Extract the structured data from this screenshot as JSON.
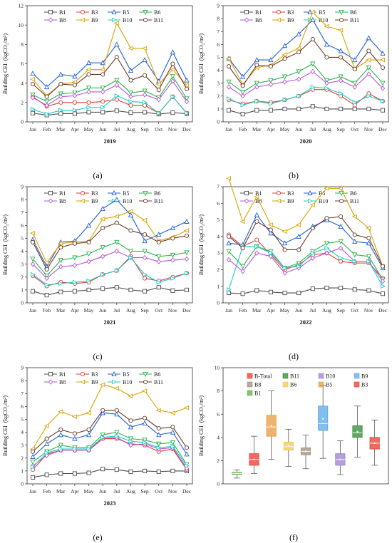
{
  "line_series_names": [
    "B1",
    "B3",
    "B5",
    "B6",
    "B8",
    "B9",
    "B10",
    "B11"
  ],
  "colors": {
    "B1": "#4d4d4d",
    "B3": "#e8392c",
    "B5": "#1f5fd6",
    "B6": "#2bb34a",
    "B8": "#b455d6",
    "B9": "#d9a300",
    "B10": "#1fc8c8",
    "B11": "#6b3a2a"
  },
  "chart_data": [
    {
      "type": "line",
      "label": "(a)",
      "year": "2019",
      "ylabel": "Building CEI  (kgCO₂/m²)",
      "ylim": [
        0,
        12
      ],
      "yticks": [
        0,
        2,
        4,
        6,
        8,
        10,
        12
      ],
      "categories": [
        "Jan",
        "Feb",
        "Mar",
        "Apr",
        "May",
        "Jun",
        "Jul",
        "Aug",
        "Sep",
        "Oct",
        "Nov",
        "Dec"
      ],
      "series": [
        {
          "name": "B1",
          "values": [
            0.9,
            0.7,
            0.85,
            0.85,
            1.0,
            1.0,
            1.15,
            0.95,
            1.0,
            0.8,
            0.95,
            0.85
          ]
        },
        {
          "name": "B3",
          "values": [
            2.6,
            1.6,
            2.0,
            2.0,
            2.0,
            2.1,
            2.3,
            1.7,
            1.7,
            0.9,
            2.6,
            0.9
          ]
        },
        {
          "name": "B5",
          "values": [
            5.0,
            3.6,
            4.9,
            4.7,
            6.1,
            6.1,
            8.0,
            5.3,
            6.4,
            4.2,
            7.2,
            4.3
          ]
        },
        {
          "name": "B6",
          "values": [
            2.8,
            2.1,
            2.9,
            3.0,
            3.5,
            3.5,
            4.3,
            3.0,
            3.2,
            2.5,
            4.7,
            2.4
          ]
        },
        {
          "name": "B8",
          "values": [
            2.5,
            1.7,
            2.6,
            2.7,
            3.1,
            3.1,
            3.8,
            2.6,
            2.8,
            2.3,
            4.2,
            2.1
          ]
        },
        {
          "name": "B9",
          "values": [
            4.4,
            2.7,
            3.9,
            4.1,
            5.4,
            5.4,
            10.2,
            7.6,
            7.6,
            3.9,
            5.4,
            3.8
          ]
        },
        {
          "name": "B10",
          "values": [
            1.3,
            0.8,
            1.2,
            1.2,
            1.5,
            1.5,
            2.7,
            2.1,
            2.0,
            0.9,
            2.6,
            0.9
          ]
        },
        {
          "name": "B11",
          "values": [
            3.9,
            2.6,
            3.9,
            3.8,
            4.9,
            4.9,
            6.7,
            4.3,
            4.8,
            3.3,
            6.0,
            3.4
          ]
        }
      ]
    },
    {
      "type": "line",
      "label": "(b)",
      "year": "2020",
      "ylabel": "Building CEI  (kgCO₂/m²)",
      "ylim": [
        0,
        9
      ],
      "yticks": [
        0,
        1,
        2,
        3,
        4,
        5,
        6,
        7,
        8,
        9
      ],
      "categories": [
        "Jan",
        "Feb",
        "Mar",
        "Apr",
        "May",
        "Jun",
        "Jul",
        "Aug",
        "Sep",
        "Oct",
        "Nov",
        "Dec"
      ],
      "series": [
        {
          "name": "B1",
          "values": [
            0.9,
            0.6,
            0.9,
            0.9,
            1.0,
            1.0,
            1.2,
            1.0,
            1.0,
            1.0,
            1.0,
            0.9
          ]
        },
        {
          "name": "B3",
          "values": [
            1.7,
            1.4,
            1.6,
            1.5,
            1.7,
            2.0,
            2.5,
            2.5,
            2.0,
            1.3,
            2.2,
            1.6
          ]
        },
        {
          "name": "B5",
          "values": [
            4.9,
            3.5,
            4.8,
            4.8,
            5.9,
            6.8,
            7.9,
            6.0,
            5.5,
            4.8,
            6.5,
            5.3
          ]
        },
        {
          "name": "B6",
          "values": [
            3.1,
            2.3,
            3.0,
            3.2,
            3.5,
            3.9,
            4.5,
            3.2,
            3.5,
            3.0,
            4.2,
            3.0
          ]
        },
        {
          "name": "B8",
          "values": [
            2.7,
            2.0,
            2.7,
            2.9,
            3.1,
            3.3,
            3.9,
            3.0,
            3.2,
            2.7,
            3.7,
            2.6
          ]
        },
        {
          "name": "B9",
          "values": [
            4.9,
            2.9,
            4.2,
            4.4,
            5.2,
            5.7,
            8.5,
            7.4,
            7.1,
            4.1,
            4.8,
            4.8
          ]
        },
        {
          "name": "B10",
          "values": [
            1.8,
            1.3,
            1.6,
            1.4,
            1.7,
            2.0,
            2.7,
            2.6,
            2.2,
            1.5,
            2.0,
            1.6
          ]
        },
        {
          "name": "B11",
          "values": [
            4.3,
            2.8,
            4.4,
            4.3,
            4.9,
            5.4,
            6.4,
            5.0,
            5.0,
            4.1,
            5.5,
            4.2
          ]
        }
      ]
    },
    {
      "type": "line",
      "label": "(c)",
      "year": "2021",
      "ylabel": "Building CEI  (kgCO₂/m²)",
      "ylim": [
        0,
        9
      ],
      "yticks": [
        0,
        1,
        2,
        3,
        4,
        5,
        6,
        7,
        8,
        9
      ],
      "categories": [
        "Jan",
        "Feb",
        "Mar",
        "Apr",
        "May",
        "Jun",
        "Jul",
        "Aug",
        "Sep",
        "Oct",
        "Nov",
        "Dec"
      ],
      "series": [
        {
          "name": "B1",
          "values": [
            0.9,
            0.6,
            0.85,
            0.9,
            1.0,
            1.1,
            1.2,
            1.0,
            0.9,
            1.2,
            0.95,
            1.0
          ]
        },
        {
          "name": "B3",
          "values": [
            2.1,
            1.3,
            1.6,
            1.5,
            1.6,
            2.2,
            2.5,
            3.6,
            1.9,
            1.7,
            2.0,
            2.3
          ]
        },
        {
          "name": "B5",
          "values": [
            4.9,
            2.8,
            4.7,
            4.8,
            6.0,
            7.3,
            8.0,
            6.8,
            4.8,
            5.3,
            5.8,
            6.3
          ]
        },
        {
          "name": "B6",
          "values": [
            3.4,
            2.1,
            3.3,
            3.5,
            3.8,
            4.3,
            4.7,
            4.0,
            4.0,
            3.6,
            3.7,
            3.9
          ]
        },
        {
          "name": "B8",
          "values": [
            3.0,
            1.9,
            2.8,
            2.9,
            3.2,
            3.6,
            4.0,
            3.5,
            3.5,
            3.2,
            3.3,
            3.4
          ]
        },
        {
          "name": "B9",
          "values": [
            5.4,
            3.1,
            4.6,
            4.7,
            4.8,
            6.5,
            6.7,
            7.1,
            6.4,
            4.8,
            5.1,
            5.6
          ]
        },
        {
          "name": "B10",
          "values": [
            2.2,
            1.4,
            1.5,
            1.6,
            1.7,
            2.2,
            2.5,
            3.5,
            2.2,
            1.6,
            1.9,
            2.3
          ]
        },
        {
          "name": "B11",
          "values": [
            4.7,
            2.6,
            4.3,
            4.6,
            4.7,
            5.8,
            6.2,
            5.6,
            5.3,
            4.7,
            5.0,
            5.2
          ]
        }
      ]
    },
    {
      "type": "line",
      "label": "(d)",
      "year": "2022",
      "ylabel": "Building CEI  (kgCO₂/m²)",
      "ylim": [
        0,
        7
      ],
      "yticks": [
        0,
        1,
        2,
        3,
        4,
        5,
        6,
        7
      ],
      "categories": [
        "Jan",
        "Feb",
        "Mar",
        "Apr",
        "May",
        "Jun",
        "Jul",
        "Aug",
        "Sep",
        "Oct",
        "Nov",
        "Dec"
      ],
      "series": [
        {
          "name": "B1",
          "values": [
            0.6,
            0.55,
            0.75,
            0.65,
            0.6,
            0.6,
            0.85,
            0.9,
            0.9,
            0.8,
            0.75,
            0.55
          ]
        },
        {
          "name": "B3",
          "values": [
            4.1,
            3.4,
            3.8,
            2.9,
            2.0,
            2.3,
            2.9,
            3.0,
            2.5,
            2.4,
            2.4,
            1.5
          ]
        },
        {
          "name": "B5",
          "values": [
            3.6,
            3.5,
            5.3,
            4.2,
            3.6,
            4.0,
            4.6,
            5.0,
            4.6,
            3.7,
            3.6,
            2.1
          ]
        },
        {
          "name": "B6",
          "values": [
            3.1,
            2.2,
            3.4,
            3.1,
            2.1,
            2.4,
            3.1,
            3.6,
            3.7,
            2.9,
            2.8,
            1.4
          ]
        },
        {
          "name": "B8",
          "values": [
            2.6,
            1.9,
            3.0,
            2.8,
            1.8,
            2.1,
            2.7,
            3.0,
            3.3,
            2.5,
            2.5,
            1.3
          ]
        },
        {
          "name": "B9",
          "values": [
            7.5,
            4.9,
            6.4,
            4.7,
            4.3,
            4.7,
            5.9,
            6.9,
            6.9,
            5.2,
            4.5,
            2.2
          ]
        },
        {
          "name": "B10",
          "values": [
            0.8,
            3.4,
            3.4,
            3.0,
            2.1,
            2.2,
            3.0,
            3.3,
            2.7,
            2.5,
            2.5,
            1.0
          ]
        },
        {
          "name": "B11",
          "values": [
            4.0,
            3.3,
            4.9,
            4.4,
            3.2,
            3.2,
            4.5,
            5.1,
            5.2,
            4.1,
            3.9,
            2.2
          ]
        }
      ]
    },
    {
      "type": "line",
      "label": "(e)",
      "year": "2023",
      "ylabel": "Building CEI  (kgCO₂/m²)",
      "ylim": [
        0,
        9
      ],
      "yticks": [
        0,
        1,
        2,
        3,
        4,
        5,
        6,
        7,
        8,
        9
      ],
      "categories": [
        "Jan",
        "Feb",
        "Mar",
        "Apr",
        "May",
        "Jun",
        "Jul",
        "Aug",
        "Sep",
        "Oct",
        "Nov",
        "Dec"
      ],
      "series": [
        {
          "name": "B1",
          "values": [
            0.5,
            0.7,
            0.8,
            0.8,
            0.85,
            1.15,
            1.1,
            0.95,
            1.0,
            0.95,
            1.0,
            1.0
          ]
        },
        {
          "name": "B3",
          "values": [
            1.1,
            2.3,
            2.6,
            2.6,
            2.6,
            3.5,
            3.5,
            3.1,
            3.0,
            2.5,
            2.7,
            1.1
          ]
        },
        {
          "name": "B5",
          "values": [
            2.1,
            3.1,
            3.8,
            3.5,
            3.8,
            5.5,
            5.4,
            4.4,
            4.7,
            3.8,
            4.0,
            2.3
          ]
        },
        {
          "name": "B6",
          "values": [
            1.7,
            2.5,
            3.0,
            2.8,
            2.8,
            3.8,
            4.0,
            3.5,
            3.4,
            3.1,
            3.2,
            1.5
          ]
        },
        {
          "name": "B8",
          "values": [
            1.4,
            2.2,
            2.6,
            2.6,
            2.6,
            3.6,
            3.6,
            3.0,
            3.1,
            2.7,
            2.8,
            1.2
          ]
        },
        {
          "name": "B9",
          "values": [
            2.7,
            4.5,
            5.6,
            5.2,
            5.5,
            7.7,
            7.4,
            6.8,
            7.2,
            5.7,
            5.5,
            5.9
          ]
        },
        {
          "name": "B10",
          "values": [
            1.3,
            2.4,
            2.7,
            2.7,
            2.7,
            3.6,
            3.7,
            3.3,
            3.2,
            2.8,
            2.9,
            1.4
          ]
        },
        {
          "name": "B11",
          "values": [
            2.5,
            3.5,
            4.2,
            3.9,
            4.2,
            5.7,
            5.7,
            4.9,
            5.1,
            4.3,
            4.4,
            2.8
          ]
        }
      ]
    },
    {
      "type": "box",
      "label": "(f)",
      "ylabel": "Building CEI  (kgCO₂/m²)",
      "ylim": [
        0,
        10
      ],
      "yticks": [
        0,
        2,
        4,
        6,
        8,
        10
      ],
      "legend": [
        {
          "name": "B-Total",
          "color": "#e8392c"
        },
        {
          "name": "B11",
          "color": "#2e8b2e"
        },
        {
          "name": "B10",
          "color": "#9b7fd4"
        },
        {
          "name": "B9",
          "color": "#5aa9e6"
        },
        {
          "name": "B8",
          "color": "#a08c7a"
        },
        {
          "name": "B6",
          "color": "#f0c850"
        },
        {
          "name": "B5",
          "color": "#e89a3c"
        },
        {
          "name": "B3",
          "color": "#e8392c"
        },
        {
          "name": "B1",
          "color": "#5fb043"
        }
      ],
      "boxes": [
        {
          "name": "B1",
          "color": "#5fb043",
          "min": 0.5,
          "q1": 0.8,
          "median": 0.9,
          "q3": 1.0,
          "max": 1.2,
          "mean": 0.9
        },
        {
          "name": "B3",
          "color": "#e8392c",
          "min": 0.9,
          "q1": 1.6,
          "median": 2.1,
          "q3": 2.6,
          "max": 4.1,
          "mean": 2.1
        },
        {
          "name": "B5",
          "color": "#e89a3c",
          "min": 2.1,
          "q1": 4.1,
          "median": 4.9,
          "q3": 5.9,
          "max": 8.0,
          "mean": 5.0
        },
        {
          "name": "B6",
          "color": "#f0c850",
          "min": 1.5,
          "q1": 2.9,
          "median": 3.2,
          "q3": 3.6,
          "max": 4.7,
          "mean": 3.3
        },
        {
          "name": "B8",
          "color": "#a08c7a",
          "min": 1.3,
          "q1": 2.5,
          "median": 2.8,
          "q3": 3.1,
          "max": 4.2,
          "mean": 2.8
        },
        {
          "name": "B9",
          "color": "#5aa9e6",
          "min": 2.2,
          "q1": 4.6,
          "median": 5.2,
          "q3": 6.7,
          "max": 8.5,
          "mean": 5.6
        },
        {
          "name": "B10",
          "color": "#9b7fd4",
          "min": 0.8,
          "q1": 1.6,
          "median": 2.1,
          "q3": 2.6,
          "max": 3.7,
          "mean": 2.1
        },
        {
          "name": "B11",
          "color": "#2e8b2e",
          "min": 2.3,
          "q1": 4.0,
          "median": 4.4,
          "q3": 5.0,
          "max": 6.7,
          "mean": 4.5
        },
        {
          "name": "B-Total",
          "color": "#e8392c",
          "min": 1.6,
          "q1": 3.0,
          "median": 3.5,
          "q3": 4.0,
          "max": 5.5,
          "mean": 3.5
        }
      ]
    }
  ]
}
